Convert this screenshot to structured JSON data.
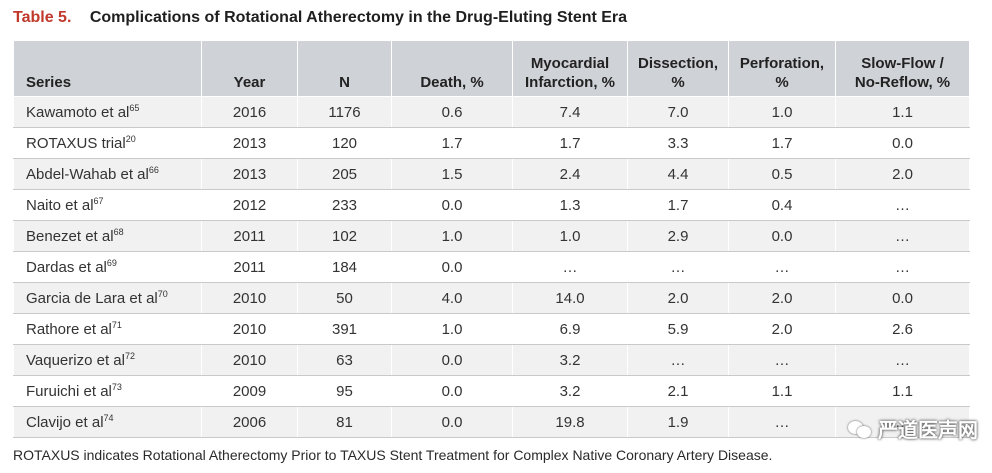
{
  "caption": {
    "label": "Table 5.",
    "title": "Complications of Rotational Atherectomy in the Drug-Eluting Stent Era"
  },
  "table": {
    "headers": [
      {
        "line1": "",
        "line2": "Series"
      },
      {
        "line1": "",
        "line2": "Year"
      },
      {
        "line1": "",
        "line2": "N"
      },
      {
        "line1": "",
        "line2": "Death, %"
      },
      {
        "line1": "Myocardial",
        "line2": "Infarction, %"
      },
      {
        "line1": "Dissection,",
        "line2": "%"
      },
      {
        "line1": "Perforation,",
        "line2": "%"
      },
      {
        "line1": "Slow-Flow /",
        "line2": "No-Reflow, %"
      }
    ],
    "rows": [
      {
        "series": "Kawamoto et al",
        "ref": "65",
        "year": "2016",
        "n": "1176",
        "death": "0.6",
        "mi": "7.4",
        "dissection": "7.0",
        "perforation": "1.0",
        "slowflow": "1.1"
      },
      {
        "series": "ROTAXUS trial",
        "ref": "20",
        "year": "2013",
        "n": "120",
        "death": "1.7",
        "mi": "1.7",
        "dissection": "3.3",
        "perforation": "1.7",
        "slowflow": "0.0"
      },
      {
        "series": "Abdel-Wahab et al",
        "ref": "66",
        "year": "2013",
        "n": "205",
        "death": "1.5",
        "mi": "2.4",
        "dissection": "4.4",
        "perforation": "0.5",
        "slowflow": "2.0"
      },
      {
        "series": "Naito et al",
        "ref": "67",
        "year": "2012",
        "n": "233",
        "death": "0.0",
        "mi": "1.3",
        "dissection": "1.7",
        "perforation": "0.4",
        "slowflow": "…"
      },
      {
        "series": "Benezet et al",
        "ref": "68",
        "year": "2011",
        "n": "102",
        "death": "1.0",
        "mi": "1.0",
        "dissection": "2.9",
        "perforation": "0.0",
        "slowflow": "…"
      },
      {
        "series": "Dardas et al",
        "ref": "69",
        "year": "2011",
        "n": "184",
        "death": "0.0",
        "mi": "…",
        "dissection": "…",
        "perforation": "…",
        "slowflow": "…"
      },
      {
        "series": "Garcia de Lara et al",
        "ref": "70",
        "year": "2010",
        "n": "50",
        "death": "4.0",
        "mi": "14.0",
        "dissection": "2.0",
        "perforation": "2.0",
        "slowflow": "0.0"
      },
      {
        "series": "Rathore et al",
        "ref": "71",
        "year": "2010",
        "n": "391",
        "death": "1.0",
        "mi": "6.9",
        "dissection": "5.9",
        "perforation": "2.0",
        "slowflow": "2.6"
      },
      {
        "series": "Vaquerizo et al",
        "ref": "72",
        "year": "2010",
        "n": "63",
        "death": "0.0",
        "mi": "3.2",
        "dissection": "…",
        "perforation": "…",
        "slowflow": "…"
      },
      {
        "series": "Furuichi et al",
        "ref": "73",
        "year": "2009",
        "n": "95",
        "death": "0.0",
        "mi": "3.2",
        "dissection": "2.1",
        "perforation": "1.1",
        "slowflow": "1.1"
      },
      {
        "series": "Clavijo et al",
        "ref": "74",
        "year": "2006",
        "n": "81",
        "death": "0.0",
        "mi": "19.8",
        "dissection": "1.9",
        "perforation": "…",
        "slowflow": "…"
      }
    ]
  },
  "footnote": "ROTAXUS indicates Rotational Atherectomy Prior to TAXUS Stent Treatment for Complex Native Coronary Artery Disease.",
  "watermark": {
    "text": "严道医声网",
    "icon": "wechat-icon"
  },
  "colors": {
    "caption_label": "#c0392b",
    "header_bg": "#cfd2d6",
    "row_alt_bg": "#f1f1f1"
  }
}
